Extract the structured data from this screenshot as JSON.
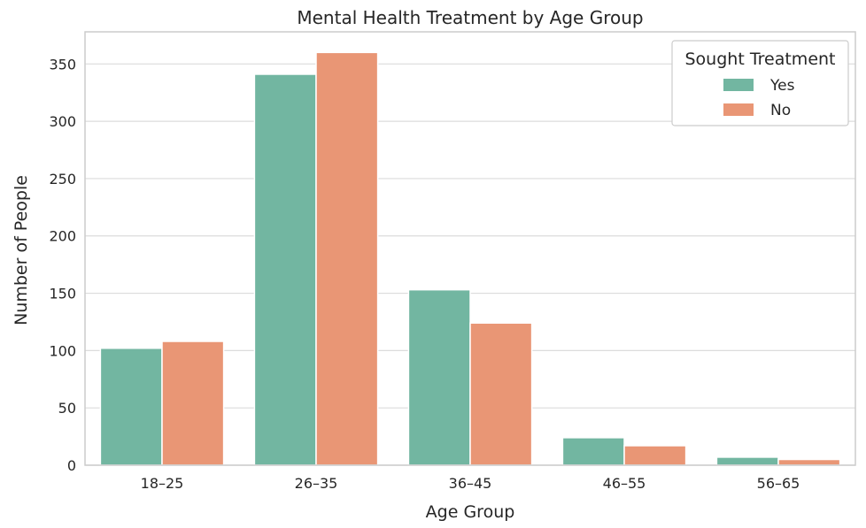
{
  "chart_data": {
    "type": "bar",
    "title": "Mental Health Treatment by Age Group",
    "xlabel": "Age Group",
    "ylabel": "Number of People",
    "categories": [
      "18–25",
      "26–35",
      "36–45",
      "46–55",
      "56–65"
    ],
    "series": [
      {
        "name": "Yes",
        "color": "#72b6a1",
        "values": [
          102,
          341,
          153,
          24,
          7
        ]
      },
      {
        "name": "No",
        "color": "#e99675",
        "values": [
          108,
          360,
          124,
          17,
          5
        ]
      }
    ],
    "ylim": [
      0,
      378
    ],
    "yticks": [
      0,
      50,
      100,
      150,
      200,
      250,
      300,
      350
    ],
    "grid": true,
    "legend": {
      "title": "Sought Treatment",
      "placement": "top-right"
    }
  }
}
